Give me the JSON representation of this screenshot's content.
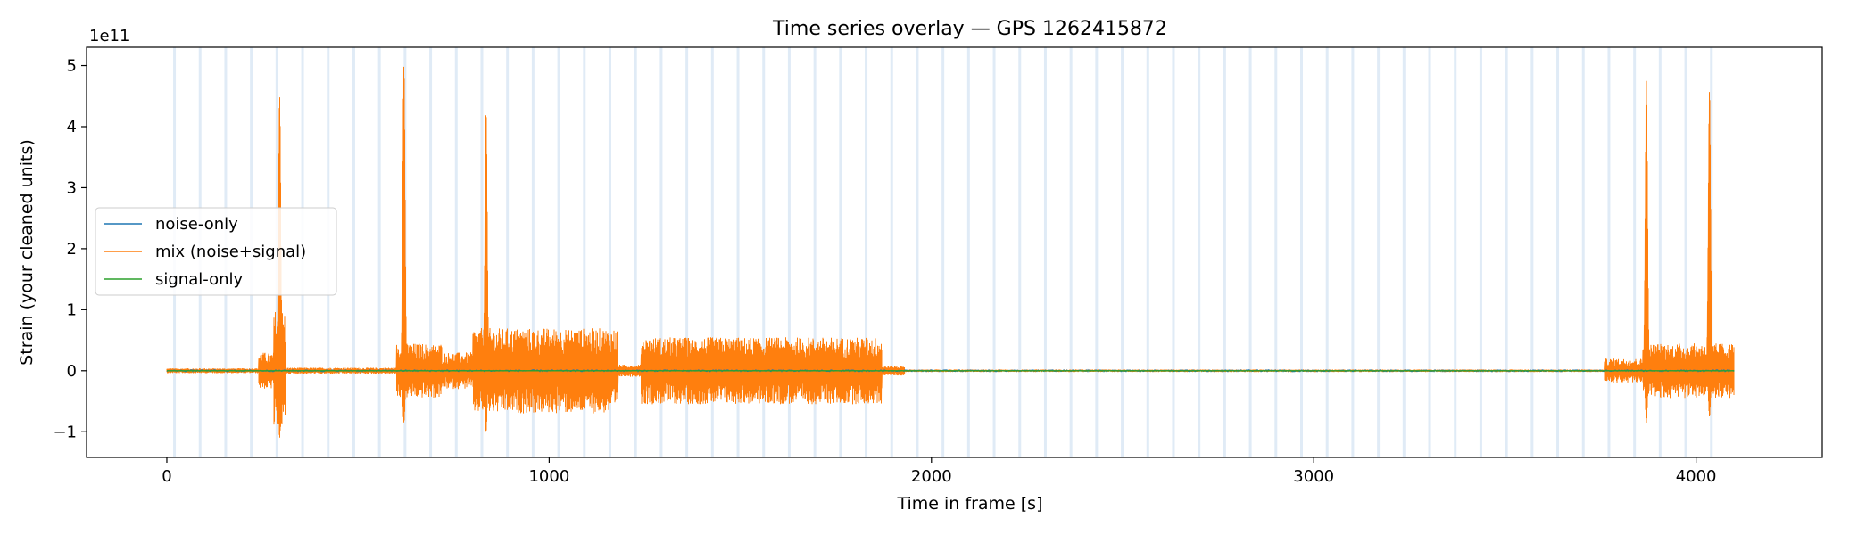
{
  "chart_data": {
    "type": "line",
    "title": "Time series overlay — GPS 1262415872",
    "xlabel": "Time in frame [s]",
    "ylabel": "Strain (your cleaned units)",
    "y_scale_label": "1e11",
    "xlim": [
      -210,
      4330
    ],
    "ylim": [
      -1.42,
      5.3
    ],
    "x_ticks": [
      0,
      1000,
      2000,
      3000,
      4000
    ],
    "y_ticks": [
      -1,
      0,
      1,
      2,
      3,
      4,
      5
    ],
    "grid": false,
    "legend_position": "center-left",
    "background_bands": {
      "color": "#c6dbef",
      "start": 20,
      "spacing": 67,
      "end": 4100
    },
    "series": [
      {
        "name": "noise-only",
        "color": "#1f77b4"
      },
      {
        "name": "mix (noise+signal)",
        "color": "#ff7f0e"
      },
      {
        "name": "signal-only",
        "color": "#2ca02c"
      }
    ],
    "mix_envelope": {
      "x_range": [
        0,
        4100
      ],
      "segments": [
        {
          "x": [
            0,
            240
          ],
          "amp": 0.04
        },
        {
          "x": [
            240,
            280
          ],
          "amp": 0.3
        },
        {
          "x": [
            280,
            310
          ],
          "amp": 1.0
        },
        {
          "x": [
            310,
            600
          ],
          "amp": 0.05
        },
        {
          "x": [
            600,
            720
          ],
          "amp": 0.45
        },
        {
          "x": [
            720,
            800
          ],
          "amp": 0.3
        },
        {
          "x": [
            800,
            830
          ],
          "amp": 0.7
        },
        {
          "x": [
            830,
            1180
          ],
          "amp": 0.7
        },
        {
          "x": [
            1180,
            1240
          ],
          "amp": 0.1
        },
        {
          "x": [
            1240,
            1870
          ],
          "amp": 0.55
        },
        {
          "x": [
            1870,
            1930
          ],
          "amp": 0.08
        },
        {
          "x": [
            1930,
            3760
          ],
          "amp": 0.02
        },
        {
          "x": [
            3760,
            3860
          ],
          "amp": 0.2
        },
        {
          "x": [
            3860,
            4100
          ],
          "amp": 0.45
        }
      ],
      "spikes": [
        {
          "x": 295,
          "ymax": 4.5,
          "ymin": -1.1
        },
        {
          "x": 620,
          "ymax": 5.0,
          "ymin": -0.85
        },
        {
          "x": 835,
          "ymax": 4.25,
          "ymin": -1.0
        },
        {
          "x": 3870,
          "ymax": 4.75,
          "ymin": -0.85
        },
        {
          "x": 4035,
          "ymax": 4.6,
          "ymin": -0.75
        }
      ]
    }
  }
}
